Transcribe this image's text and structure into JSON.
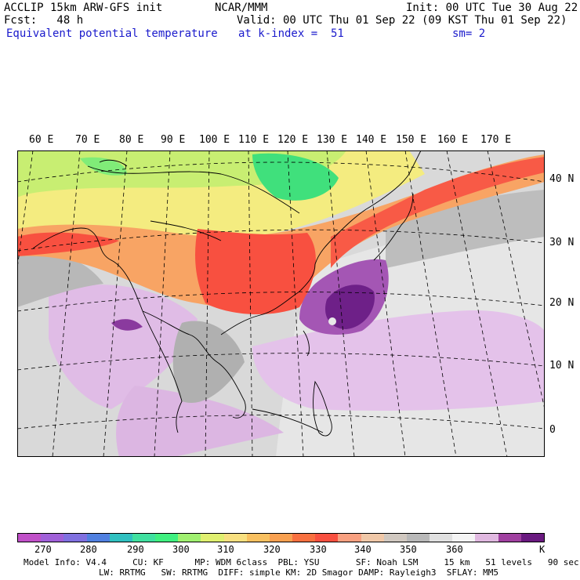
{
  "header": {
    "line1_left": "ACCLIP 15km ARW-GFS init",
    "line1_mid": "NCAR/MMM",
    "line1_right": "Init: 00 UTC Tue 30 Aug 22",
    "line2_left": "Fcst:   48 h",
    "line2_right": "Valid: 00 UTC Thu 01 Sep 22 (09 KST Thu 01 Sep 22)",
    "line3_left": "Equivalent potential temperature",
    "line3_mid": "at k-index =  51",
    "line3_right": "sm= 2"
  },
  "map": {
    "lon_labels": [
      "60 E",
      "70 E",
      "80 E",
      "90 E",
      "100 E",
      "110 E",
      "120 E",
      "130 E",
      "140 E",
      "150 E",
      "160 E",
      "170 E"
    ],
    "lat_labels": [
      "40 N",
      "30 N",
      "20 N",
      "10 N",
      "0"
    ],
    "colors": {
      "land_outline": "#000000",
      "grid": "#000000",
      "water_light": "#e8e8e8",
      "gray": "#b4b4b4",
      "green": "#40e080",
      "yellow_green": "#c8f070",
      "yellow": "#f8f080",
      "orange": "#f8a060",
      "red": "#f85040",
      "lavender": "#e0b8e8",
      "purple": "#9040a0",
      "dark_purple": "#70208a"
    }
  },
  "colorbar": {
    "colors": [
      "#c050c8",
      "#a060d8",
      "#8070e0",
      "#5080e0",
      "#30c0c0",
      "#40e0a0",
      "#40f080",
      "#a0f070",
      "#e0f070",
      "#f8e080",
      "#f8c060",
      "#f8a050",
      "#f87040",
      "#f85040",
      "#f8a080",
      "#f0c8a8",
      "#d0c8c0",
      "#b8b8b8",
      "#e0e0e0",
      "#f4f4f4",
      "#e0b8e0",
      "#a040a0",
      "#6a1a80"
    ],
    "tick_labels": [
      "270",
      "280",
      "290",
      "300",
      "310",
      "320",
      "330",
      "340",
      "350",
      "360"
    ],
    "unit": "K"
  },
  "footer": {
    "line1": "Model Info: V4.4     CU: KF      MP: WDM 6class  PBL: YSU       SF: Noah LSM     15 km   51 levels   90 sec",
    "line2": "LW: RRTMG   SW: RRTMG  DIFF: simple KM: 2D Smagor DAMP: Rayleigh3  SFLAY: MM5"
  }
}
